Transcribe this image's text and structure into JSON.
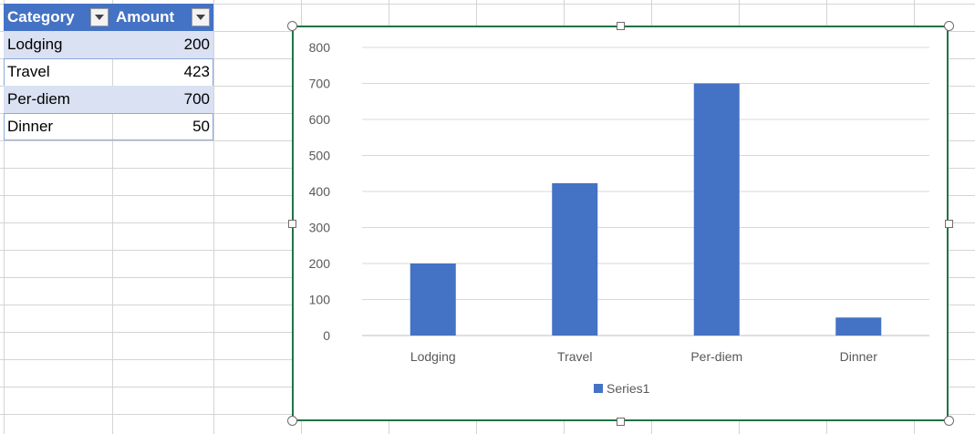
{
  "table": {
    "headers": [
      "Category",
      "Amount"
    ],
    "rows": [
      {
        "category": "Lodging",
        "amount": "200"
      },
      {
        "category": "Travel",
        "amount": "423"
      },
      {
        "category": "Per-diem",
        "amount": "700"
      },
      {
        "category": "Dinner",
        "amount": "50"
      }
    ],
    "header_color": "#4472c4",
    "band_color": "#d9e1f2"
  },
  "icons": {
    "filter_dropdown": "chevron-down-icon"
  },
  "chart_data": {
    "type": "bar",
    "categories": [
      "Lodging",
      "Travel",
      "Per-diem",
      "Dinner"
    ],
    "series": [
      {
        "name": "Series1",
        "values": [
          200,
          423,
          700,
          50
        ],
        "color": "#4472c4"
      }
    ],
    "title": "",
    "xlabel": "",
    "ylabel": "",
    "ylim": [
      0,
      800
    ],
    "yticks": [
      "0",
      "100",
      "200",
      "300",
      "400",
      "500",
      "600",
      "700",
      "800"
    ],
    "grid": true,
    "legend": "bottom",
    "frame_color": "#217346"
  }
}
